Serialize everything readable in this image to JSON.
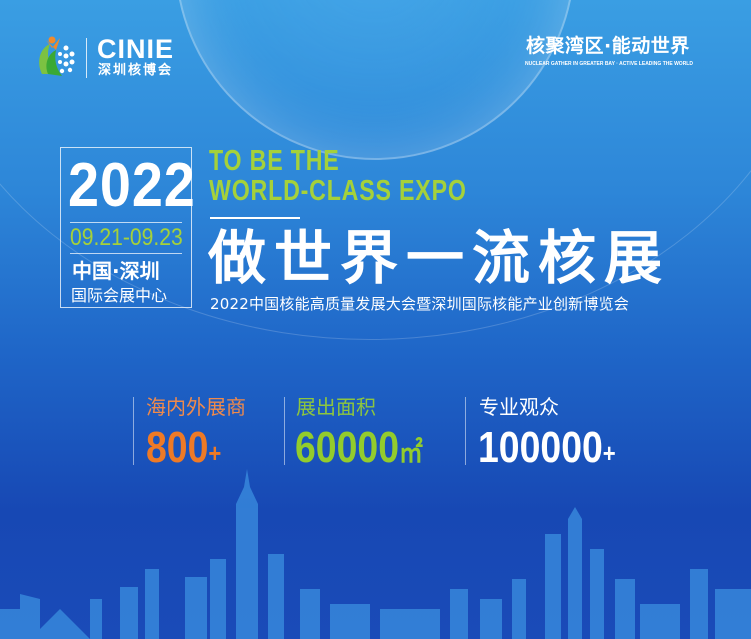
{
  "logo": {
    "name": "CINIE",
    "subtitle": "深圳核博会"
  },
  "slogan": {
    "zh": "核聚湾区·能动世界",
    "en": "NUCLEAR GATHER IN GREATER BAY · ACTIVE LEADING THE WORLD"
  },
  "event": {
    "year": "2022",
    "dates": "09.21-09.23",
    "city": "中国·深圳",
    "venue": "国际会展中心"
  },
  "headline": {
    "en_line1": "TO BE THE",
    "en_line2": "WORLD-CLASS EXPO",
    "zh": "做世界一流核展",
    "subtitle": "2022中国核能高质量发展大会暨深圳国际核能产业创新博览会"
  },
  "stats": [
    {
      "label": "海内外展商",
      "value": "800",
      "suffix": "+",
      "color": "#ee7a26"
    },
    {
      "label": "展出面积",
      "value": "60000",
      "suffix": "㎡",
      "color": "#8dc63f"
    },
    {
      "label": "专业观众",
      "value": "100000",
      "suffix": "+",
      "color": "#ffffff"
    }
  ],
  "colors": {
    "accent_green": "#a5d13a",
    "accent_orange": "#ee7a26"
  }
}
